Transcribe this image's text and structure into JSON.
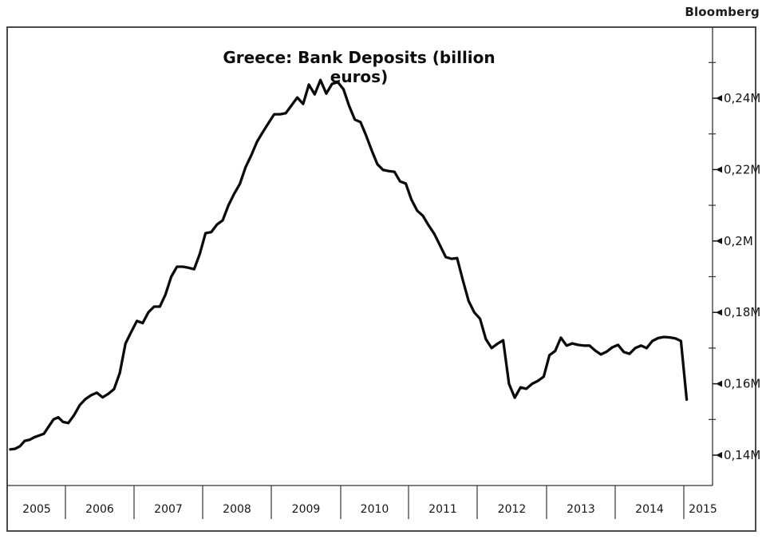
{
  "header": {
    "brand": "Bloomberg"
  },
  "chart_data": {
    "type": "line",
    "title": "Greece: Bank Deposits (billion euros)",
    "legend": "none",
    "grid": "off",
    "line_color": "#0b0b0b",
    "axis_color": "#333333",
    "x_axis": {
      "labels": [
        "2005",
        "2006",
        "2007",
        "2008",
        "2009",
        "2010",
        "2011",
        "2012",
        "2013",
        "2014",
        "2015"
      ],
      "frequency": "monthly",
      "start": "2005-01",
      "end": "2015-01"
    },
    "y_axis": {
      "side": "right",
      "unit": "M (millions of euros; i.e. 0,16M = 160 billion)",
      "tick_labels": [
        "0,24M",
        "0,22M",
        "0,2M",
        "0,18M",
        "0,16M",
        "0,14M"
      ],
      "tick_values": [
        0.24,
        0.22,
        0.2,
        0.18,
        0.16,
        0.14
      ],
      "minor_tick_values": [
        0.25,
        0.23,
        0.21,
        0.19,
        0.17,
        0.15
      ],
      "visible_range": [
        0.131,
        0.252
      ]
    },
    "series": [
      {
        "name": "Greece bank deposits",
        "values": [
          0.1416,
          0.1418,
          0.1425,
          0.144,
          0.1443,
          0.145,
          0.1455,
          0.146,
          0.148,
          0.15,
          0.1506,
          0.1493,
          0.149,
          0.1512,
          0.154,
          0.1557,
          0.1568,
          0.1575,
          0.1562,
          0.1572,
          0.1585,
          0.163,
          0.1713,
          0.1745,
          0.1776,
          0.177,
          0.18,
          0.1816,
          0.1816,
          0.185,
          0.19,
          0.1928,
          0.1928,
          0.1925,
          0.1921,
          0.1964,
          0.2022,
          0.2025,
          0.2046,
          0.2058,
          0.21,
          0.2132,
          0.216,
          0.2207,
          0.224,
          0.2278,
          0.2305,
          0.233,
          0.2355,
          0.2355,
          0.2358,
          0.238,
          0.2402,
          0.2384,
          0.2438,
          0.2411,
          0.2451,
          0.2413,
          0.244,
          0.2445,
          0.2425,
          0.2378,
          0.234,
          0.2333,
          0.2295,
          0.2253,
          0.2215,
          0.2199,
          0.2196,
          0.2194,
          0.2167,
          0.2161,
          0.2116,
          0.2085,
          0.2071,
          0.2044,
          0.202,
          0.1988,
          0.1955,
          0.195,
          0.1952,
          0.189,
          0.1832,
          0.18,
          0.1782,
          0.1725,
          0.17,
          0.1712,
          0.1722,
          0.16,
          0.1561,
          0.159,
          0.1586,
          0.16,
          0.1608,
          0.162,
          0.168,
          0.1692,
          0.1729,
          0.1707,
          0.1713,
          0.1709,
          0.1707,
          0.1707,
          0.1693,
          0.1682,
          0.169,
          0.1702,
          0.1709,
          0.1689,
          0.1684,
          0.17,
          0.1707,
          0.17,
          0.172,
          0.1728,
          0.1731,
          0.173,
          0.1727,
          0.172,
          0.1556
        ]
      }
    ]
  }
}
